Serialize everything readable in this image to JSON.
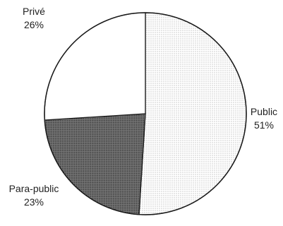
{
  "chart_data": {
    "type": "pie",
    "title": "",
    "start": "12 o'clock",
    "direction": "clockwise",
    "slices": [
      {
        "label": "Public",
        "value": 51,
        "value_label": "51%",
        "fill": "dots-light"
      },
      {
        "label": "Para-public",
        "value": 23,
        "value_label": "23%",
        "fill": "dots-dark"
      },
      {
        "label": "Privé",
        "value": 26,
        "value_label": "26%",
        "fill": "white"
      }
    ]
  },
  "colors": {
    "outline": "#1a1a1a",
    "light_dots": "#8a8a8a",
    "dark_dots": "#333333",
    "background": "#ffffff"
  }
}
